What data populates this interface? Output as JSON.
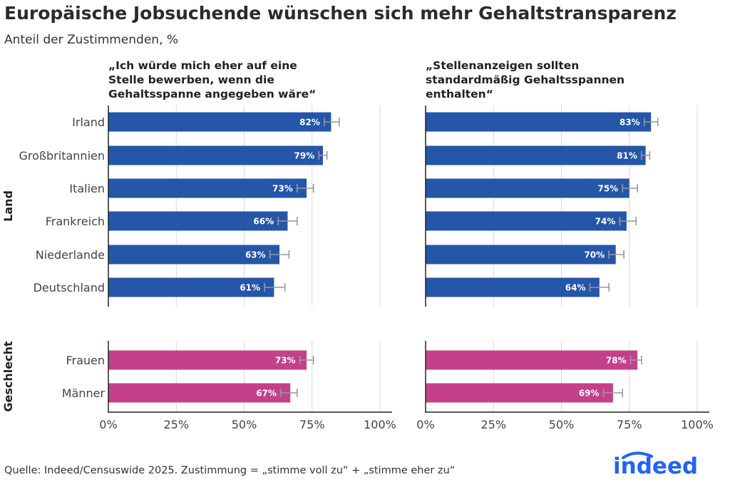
{
  "title": "Europäische Jobsuchende wünschen sich mehr Gehaltstransparenz",
  "subtitle": "Anteil der Zustimmenden, %",
  "source": "Quelle: Indeed/Censuswide 2025. Zustimmung = „stimme voll zu“ + „stimme eher zu“",
  "logo_text": "indeed",
  "colors": {
    "land": "#2556a8",
    "geschlecht": "#c4418a",
    "error_bar": "#999999",
    "grid": "#d9d9d9",
    "axis": "#222222"
  },
  "chart_data": {
    "type": "bar",
    "orientation": "horizontal",
    "xlim": [
      0,
      100
    ],
    "x_ticks": [
      "0%",
      "25%",
      "50%",
      "75%",
      "100%"
    ],
    "grid": true,
    "groups": [
      {
        "name": "Land",
        "categories": [
          "Irland",
          "Großbritannien",
          "Italien",
          "Frankreich",
          "Niederlande",
          "Deutschland"
        ]
      },
      {
        "name": "Geschlecht",
        "categories": [
          "Frauen",
          "Männer"
        ]
      }
    ],
    "panels": [
      {
        "title_lines": [
          "„Ich würde mich eher auf eine",
          "Stelle bewerben, wenn die",
          "Gehaltsspanne angegeben wäre“"
        ],
        "values": {
          "Land": [
            82,
            79,
            73,
            66,
            63,
            61
          ],
          "Geschlecht": [
            73,
            67
          ]
        },
        "labels": {
          "Land": [
            "82%",
            "79%",
            "73%",
            "66%",
            "63%",
            "61%"
          ],
          "Geschlecht": [
            "73%",
            "67%"
          ]
        },
        "error_low": {
          "Land": [
            79.5,
            77.5,
            69.5,
            62.5,
            59.5,
            57.5
          ],
          "Geschlecht": [
            70.5,
            63.5
          ]
        },
        "error_high": {
          "Land": [
            85,
            80.5,
            75.5,
            69.5,
            66.5,
            65
          ],
          "Geschlecht": [
            75.5,
            69.5
          ]
        }
      },
      {
        "title_lines": [
          "„Stellenanzeigen sollten",
          "standardmäßig Gehaltsspannen",
          "enthalten“"
        ],
        "values": {
          "Land": [
            83,
            81,
            75,
            74,
            70,
            64
          ],
          "Geschlecht": [
            78,
            69
          ]
        },
        "labels": {
          "Land": [
            "83%",
            "81%",
            "75%",
            "74%",
            "70%",
            "64%"
          ],
          "Geschlecht": [
            "78%",
            "69%"
          ]
        },
        "error_low": {
          "Land": [
            80.5,
            79.5,
            72.5,
            71.5,
            67.5,
            60.5
          ],
          "Geschlecht": [
            75.5,
            65.5
          ]
        },
        "error_high": {
          "Land": [
            85.5,
            82.5,
            78,
            77.5,
            73,
            67.5
          ],
          "Geschlecht": [
            79.5,
            72.5
          ]
        }
      }
    ]
  }
}
